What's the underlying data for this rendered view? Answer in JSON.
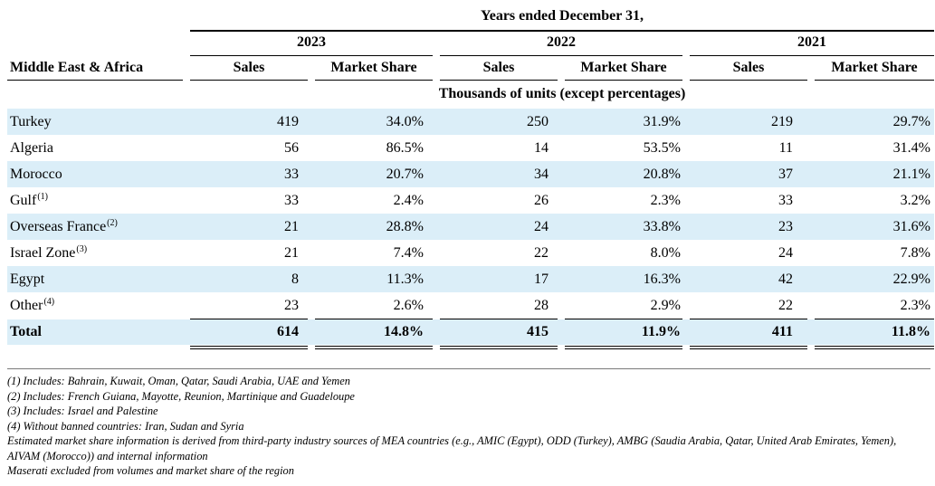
{
  "table": {
    "super_header": "Years ended December 31,",
    "region_label": "Middle East & Africa",
    "units_note": "Thousands of units (except percentages)",
    "years": [
      "2023",
      "2022",
      "2021"
    ],
    "col_sales": "Sales",
    "col_share": "Market Share",
    "rows": [
      {
        "label": "Turkey",
        "note": "",
        "values": [
          "419",
          "34.0%",
          "250",
          "31.9%",
          "219",
          "29.7%"
        ]
      },
      {
        "label": "Algeria",
        "note": "",
        "values": [
          "56",
          "86.5%",
          "14",
          "53.5%",
          "11",
          "31.4%"
        ]
      },
      {
        "label": "Morocco",
        "note": "",
        "values": [
          "33",
          "20.7%",
          "34",
          "20.8%",
          "37",
          "21.1%"
        ]
      },
      {
        "label": "Gulf",
        "note": "(1)",
        "values": [
          "33",
          "2.4%",
          "26",
          "2.3%",
          "33",
          "3.2%"
        ]
      },
      {
        "label": "Overseas France",
        "note": "(2)",
        "values": [
          "21",
          "28.8%",
          "24",
          "33.8%",
          "23",
          "31.6%"
        ]
      },
      {
        "label": "Israel Zone",
        "note": "(3)",
        "values": [
          "21",
          "7.4%",
          "22",
          "8.0%",
          "24",
          "7.8%"
        ]
      },
      {
        "label": "Egypt",
        "note": "",
        "values": [
          "8",
          "11.3%",
          "17",
          "16.3%",
          "42",
          "22.9%"
        ]
      },
      {
        "label": "Other",
        "note": "(4)",
        "values": [
          "23",
          "2.6%",
          "28",
          "2.9%",
          "22",
          "2.3%"
        ]
      }
    ],
    "total": {
      "label": "Total",
      "values": [
        "614",
        "14.8%",
        "415",
        "11.9%",
        "411",
        "11.8%"
      ]
    }
  },
  "footnotes": [
    "(1) Includes: Bahrain, Kuwait, Oman, Qatar, Saudi Arabia, UAE and Yemen",
    "(2) Includes: French Guiana, Mayotte, Reunion, Martinique and Guadeloupe",
    "(3) Includes: Israel and Palestine",
    "(4) Without banned countries: Iran, Sudan and Syria",
    "Estimated market share information is derived from third-party industry sources of MEA countries (e.g., AMIC (Egypt), ODD (Turkey), AMBG (Saudia Arabia, Qatar, United Arab Emirates, Yemen), AIVAM (Morocco)) and internal information",
    "Maserati excluded from volumes and market share of the region"
  ],
  "colors": {
    "row_shade": "#dbeef8"
  }
}
